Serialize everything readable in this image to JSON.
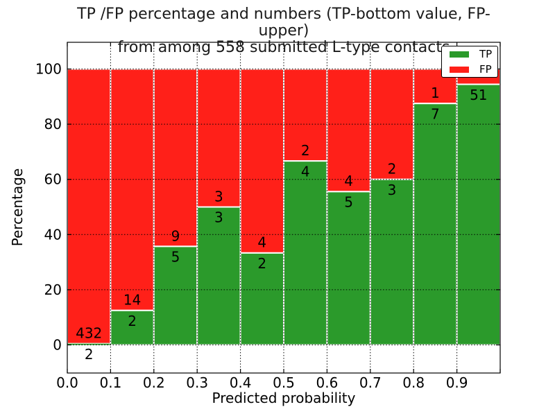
{
  "title_line1": "TP /FP percentage and numbers (TP-bottom value, FP-upper)",
  "title_line2": "from among 558 submitted L-type contacts",
  "xlabel": "Predicted probability",
  "ylabel": "Percentage",
  "legend": {
    "items": [
      {
        "label": "TP",
        "color": "#2b9a2b"
      },
      {
        "label": "FP",
        "color": "#ff2019"
      }
    ]
  },
  "chart_data": {
    "type": "bar",
    "stacked": true,
    "title": "TP /FP percentage and numbers (TP-bottom value, FP-upper) from among 558 submitted L-type contacts",
    "xlabel": "Predicted probability",
    "ylabel": "Percentage",
    "x_tick_labels": [
      "0.0",
      "0.1",
      "0.2",
      "0.3",
      "0.4",
      "0.5",
      "0.6",
      "0.7",
      "0.8",
      "0.9"
    ],
    "y_ticks": [
      0,
      20,
      40,
      60,
      80,
      100
    ],
    "xlim": [
      0.0,
      1.0
    ],
    "ylim": [
      -10.2,
      109.7
    ],
    "grid": true,
    "grid_style": "dotted",
    "legend_position": "upper right",
    "bin_edges": [
      0.0,
      0.1,
      0.2,
      0.3,
      0.4,
      0.5,
      0.6,
      0.7,
      0.8,
      0.9,
      1.0
    ],
    "series": [
      {
        "name": "TP",
        "color": "#2b9a2b",
        "pct_values": [
          0.46,
          12.5,
          35.71,
          50.0,
          33.33,
          66.67,
          55.56,
          60.0,
          87.5,
          94.44
        ],
        "count_labels": [
          "2",
          "2",
          "5",
          "3",
          "2",
          "4",
          "5",
          "3",
          "7",
          "51"
        ]
      },
      {
        "name": "FP",
        "color": "#ff2019",
        "pct_values": [
          99.54,
          87.5,
          64.29,
          50.0,
          66.67,
          33.33,
          44.44,
          40.0,
          12.5,
          5.56
        ],
        "count_labels": [
          "432",
          "14",
          "9",
          "3",
          "4",
          "2",
          "4",
          "2",
          "1",
          ""
        ]
      }
    ],
    "bar_edge_color": "#ffffff"
  }
}
